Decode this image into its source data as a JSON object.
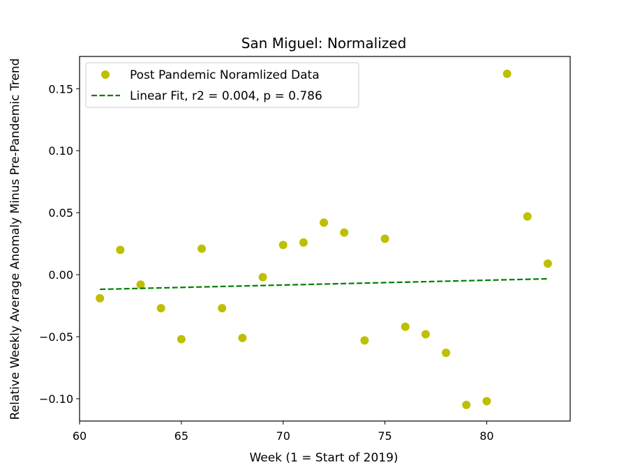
{
  "chart_data": {
    "type": "scatter",
    "title": "San Miguel: Normalized",
    "xlabel": "Week (1 = Start of 2019)",
    "ylabel": "Relative Weekly Average Anomaly Minus Pre-Pandemic Trend",
    "xlim": [
      60.0,
      84.1
    ],
    "ylim": [
      -0.118,
      0.176
    ],
    "xticks": [
      60,
      65,
      70,
      75,
      80
    ],
    "yticks": [
      -0.1,
      -0.05,
      0.0,
      0.05,
      0.1,
      0.15
    ],
    "ytick_labels": [
      "−0.10",
      "−0.05",
      "0.00",
      "0.05",
      "0.10",
      "0.15"
    ],
    "grid": false,
    "legend_position": "top-left",
    "series": [
      {
        "name": "Post Pandemic Noramlized Data",
        "kind": "scatter",
        "color": "#bfbf00",
        "x": [
          61,
          62,
          63,
          64,
          65,
          66,
          67,
          68,
          69,
          70,
          71,
          72,
          73,
          74,
          75,
          76,
          77,
          78,
          79,
          80,
          81,
          82,
          83
        ],
        "y": [
          -0.019,
          0.02,
          -0.008,
          -0.027,
          -0.052,
          0.021,
          -0.027,
          -0.051,
          -0.002,
          0.024,
          0.026,
          0.042,
          0.034,
          -0.053,
          0.029,
          -0.042,
          -0.048,
          -0.063,
          -0.105,
          -0.102,
          0.162,
          0.047,
          0.009
        ]
      },
      {
        "name": "Linear Fit, r2 = 0.004, p = 0.786",
        "kind": "line",
        "style": "dashed",
        "color": "#007f00",
        "x": [
          61,
          83
        ],
        "y": [
          -0.0118,
          -0.0033
        ]
      }
    ]
  }
}
